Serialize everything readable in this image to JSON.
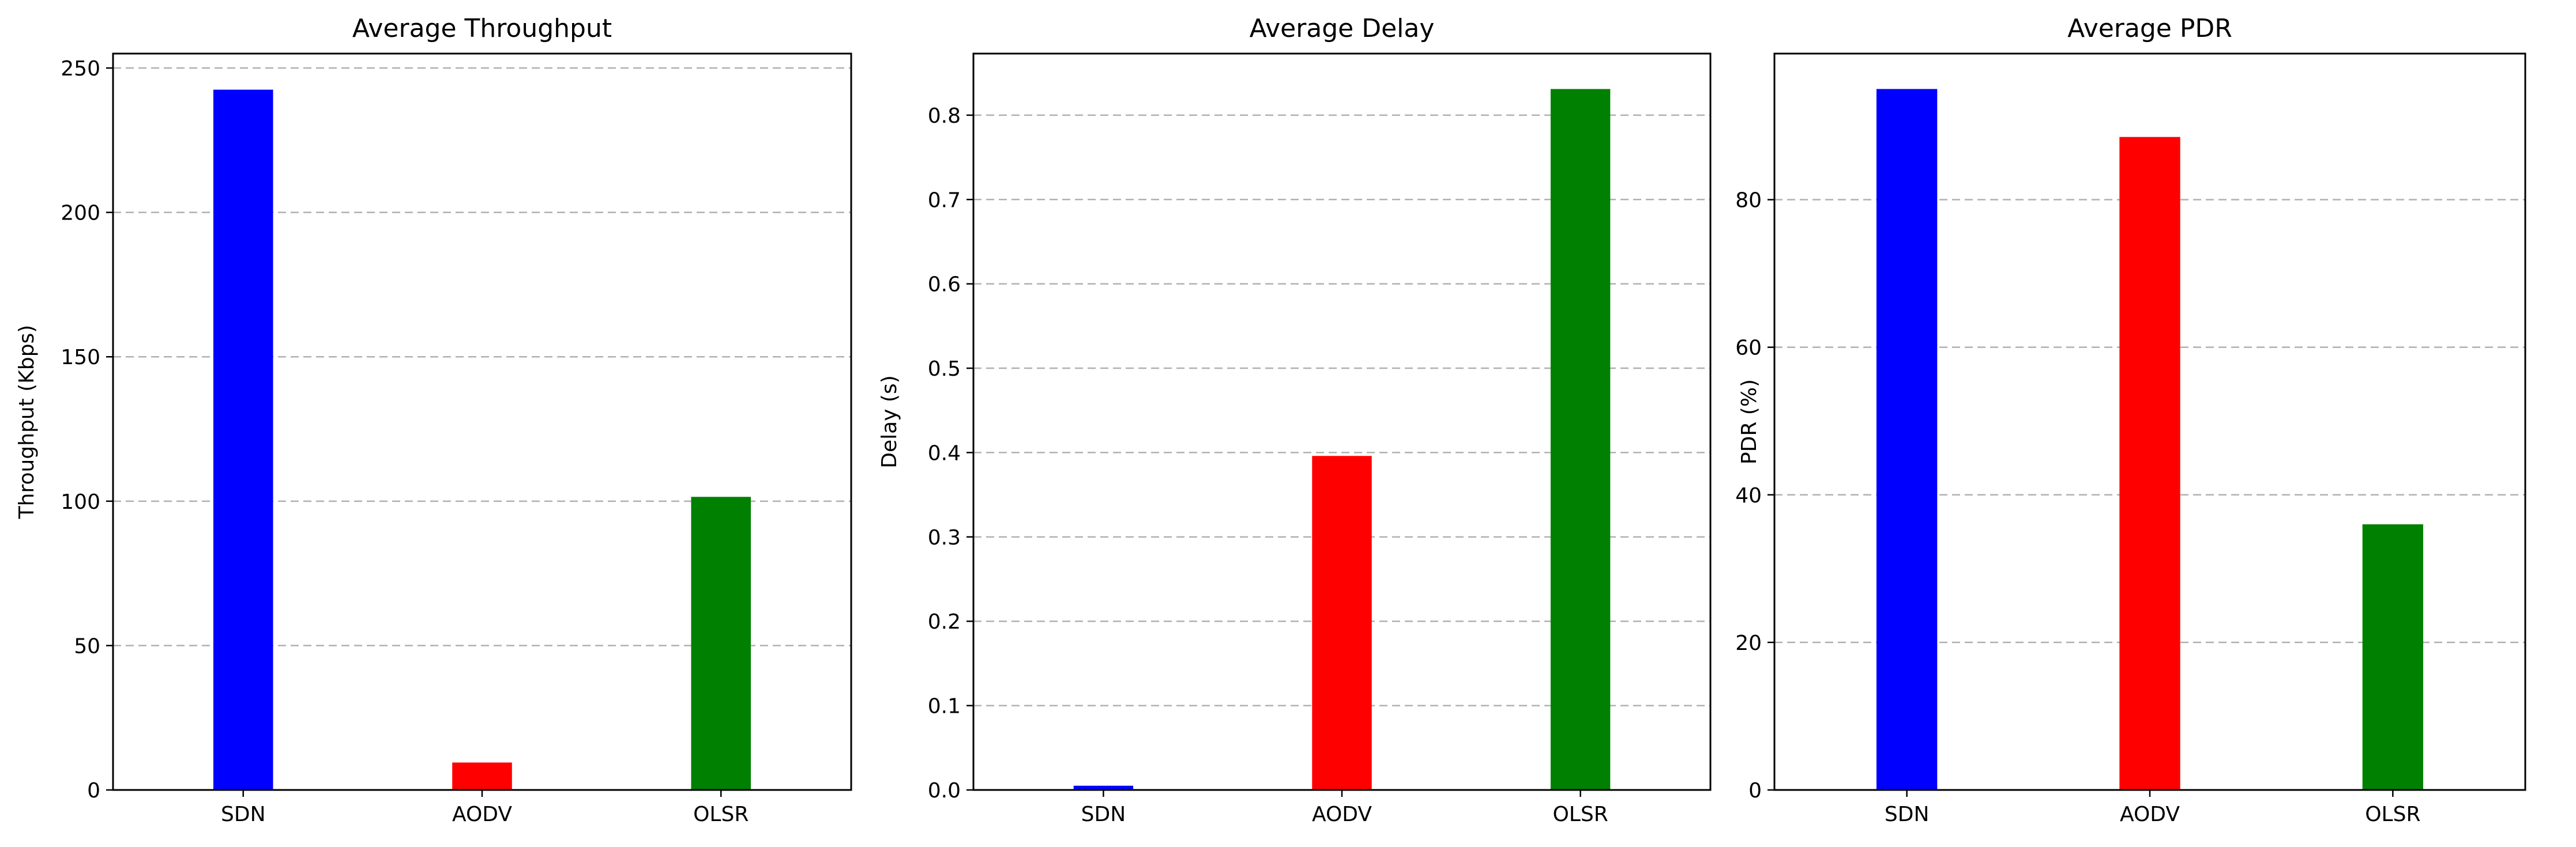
{
  "chart_data": [
    {
      "type": "bar",
      "title": "Average Throughput",
      "xlabel": "",
      "ylabel": "Throughput (Kbps)",
      "categories": [
        "SDN",
        "AODV",
        "OLSR"
      ],
      "values": [
        242.5,
        9.5,
        101.5
      ],
      "colors": [
        "#0000ff",
        "#ff0000",
        "#008000"
      ],
      "ylim": [
        0,
        255
      ],
      "yticks": [
        0,
        50,
        100,
        150,
        200,
        250
      ],
      "ytick_labels": [
        "0",
        "50",
        "100",
        "150",
        "200",
        "250"
      ],
      "grid": "y-dashed"
    },
    {
      "type": "bar",
      "title": "Average Delay",
      "xlabel": "",
      "ylabel": "Delay (s)",
      "categories": [
        "SDN",
        "AODV",
        "OLSR"
      ],
      "values": [
        0.005,
        0.396,
        0.831
      ],
      "colors": [
        "#0000ff",
        "#ff0000",
        "#008000"
      ],
      "ylim": [
        0,
        0.873
      ],
      "yticks": [
        0,
        0.1,
        0.2,
        0.3,
        0.4,
        0.5,
        0.6,
        0.7,
        0.8
      ],
      "ytick_labels": [
        "0.0",
        "0.1",
        "0.2",
        "0.3",
        "0.4",
        "0.5",
        "0.6",
        "0.7",
        "0.8"
      ],
      "grid": "y-dashed"
    },
    {
      "type": "bar",
      "title": "Average PDR",
      "xlabel": "",
      "ylabel": "PDR (%)",
      "categories": [
        "SDN",
        "AODV",
        "OLSR"
      ],
      "values": [
        95.0,
        88.5,
        36.0
      ],
      "colors": [
        "#0000ff",
        "#ff0000",
        "#008000"
      ],
      "ylim": [
        0,
        99.8
      ],
      "yticks": [
        0,
        20,
        40,
        60,
        80
      ],
      "ytick_labels": [
        "0",
        "20",
        "40",
        "60",
        "80"
      ],
      "grid": "y-dashed"
    }
  ]
}
